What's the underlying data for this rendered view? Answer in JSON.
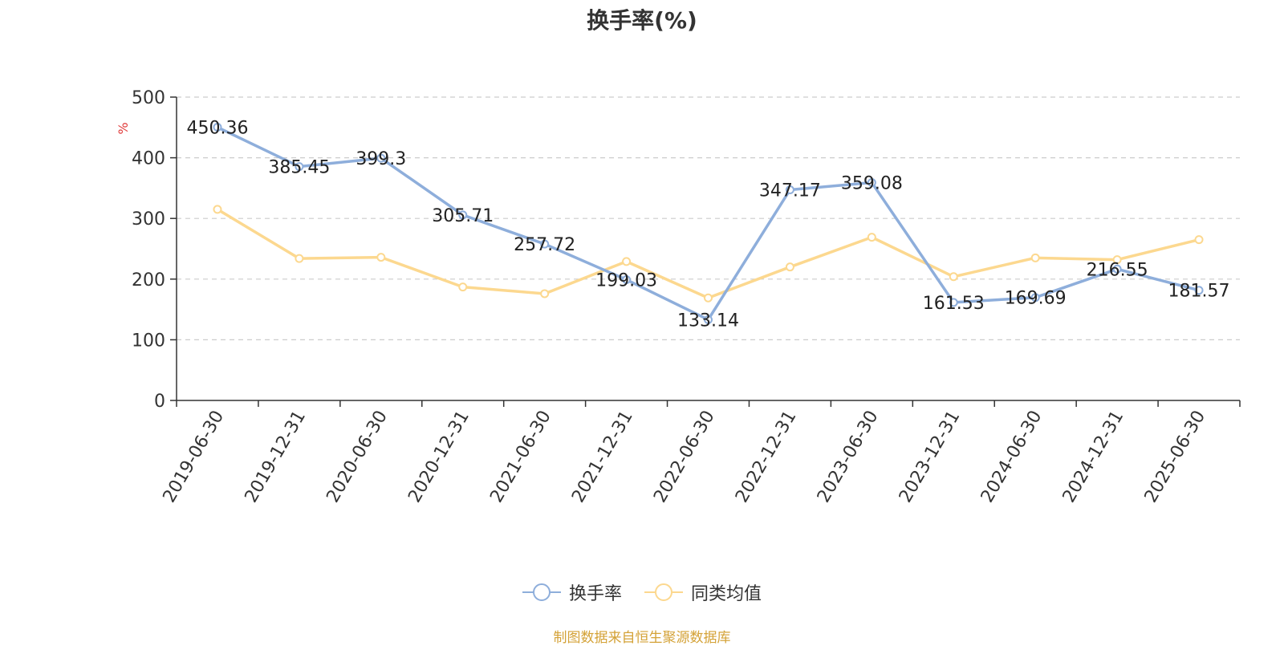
{
  "chart_data": {
    "type": "line",
    "title": "换手率(%)",
    "ylabel": "%",
    "categories": [
      "2019-06-30",
      "2019-12-31",
      "2020-06-30",
      "2020-12-31",
      "2021-06-30",
      "2021-12-31",
      "2022-06-30",
      "2022-12-31",
      "2023-06-30",
      "2023-12-31",
      "2024-06-30",
      "2024-12-31",
      "2025-06-30"
    ],
    "ylim": [
      0,
      500
    ],
    "yticks": [
      0,
      100,
      200,
      300,
      400,
      500
    ],
    "grid": true,
    "legend_position": "bottom",
    "series": [
      {
        "name": "换手率",
        "color": "#8eaedb",
        "values": [
          450.36,
          385.45,
          399.3,
          305.71,
          257.72,
          199.03,
          133.14,
          347.17,
          359.08,
          161.53,
          169.69,
          216.55,
          181.57
        ],
        "labels": [
          "450.36",
          "385.45",
          "399.3",
          "305.71",
          "257.72",
          "199.03",
          "133.14",
          "347.17",
          "359.08",
          "161.53",
          "169.69",
          "216.55",
          "181.57"
        ]
      },
      {
        "name": "同类均值",
        "color": "#fcd88f",
        "values": [
          315,
          234,
          236,
          187,
          176,
          229,
          169,
          220,
          269,
          204,
          235,
          232,
          265
        ]
      }
    ]
  },
  "footer": {
    "source": "制图数据来自恒生聚源数据库"
  }
}
